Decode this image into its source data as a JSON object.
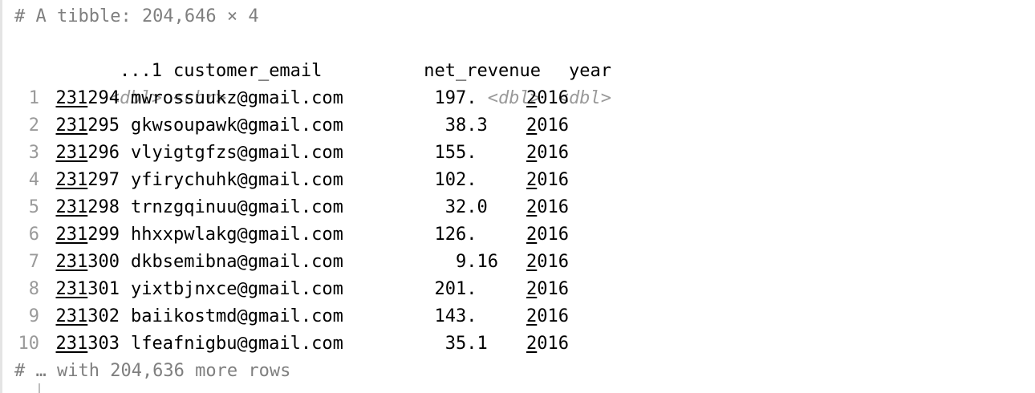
{
  "console": {
    "header_comment": "# A tibble: 204,646 × 4",
    "footer_comment": "# … with 204,636 more rows"
  },
  "columns": [
    {
      "name": "...1",
      "type": "<dbl>"
    },
    {
      "name": "customer_email",
      "type": "<chr>"
    },
    {
      "name": "net_revenue",
      "type": "<dbl>"
    },
    {
      "name": "year",
      "type": "<dbl>"
    }
  ],
  "rows": [
    {
      "n": "1",
      "id_hi": "231",
      "id_lo": "294",
      "email": "mwrossuukz@gmail.com",
      "rev": "197.",
      "year_hi": "2",
      "year_lo": "016"
    },
    {
      "n": "2",
      "id_hi": "231",
      "id_lo": "295",
      "email": "gkwsoupawk@gmail.com",
      "rev": "38.3",
      "year_hi": "2",
      "year_lo": "016"
    },
    {
      "n": "3",
      "id_hi": "231",
      "id_lo": "296",
      "email": "vlyigtgfzs@gmail.com",
      "rev": "155.",
      "year_hi": "2",
      "year_lo": "016"
    },
    {
      "n": "4",
      "id_hi": "231",
      "id_lo": "297",
      "email": "yfirychuhk@gmail.com",
      "rev": "102.",
      "year_hi": "2",
      "year_lo": "016"
    },
    {
      "n": "5",
      "id_hi": "231",
      "id_lo": "298",
      "email": "trnzgqinuu@gmail.com",
      "rev": "32.0",
      "year_hi": "2",
      "year_lo": "016"
    },
    {
      "n": "6",
      "id_hi": "231",
      "id_lo": "299",
      "email": "hhxxpwlakg@gmail.com",
      "rev": "126.",
      "year_hi": "2",
      "year_lo": "016"
    },
    {
      "n": "7",
      "id_hi": "231",
      "id_lo": "300",
      "email": "dkbsemibna@gmail.com",
      "rev": "9.16",
      "year_hi": "2",
      "year_lo": "016"
    },
    {
      "n": "8",
      "id_hi": "231",
      "id_lo": "301",
      "email": "yixtbjnxce@gmail.com",
      "rev": "201.",
      "year_hi": "2",
      "year_lo": "016"
    },
    {
      "n": "9",
      "id_hi": "231",
      "id_lo": "302",
      "email": "baiikostmd@gmail.com",
      "rev": "143.",
      "year_hi": "2",
      "year_lo": "016"
    },
    {
      "n": "10",
      "id_hi": "231",
      "id_lo": "303",
      "email": "lfeafnigbu@gmail.com",
      "rev": "35.1",
      "year_hi": "2",
      "year_lo": "016"
    }
  ]
}
